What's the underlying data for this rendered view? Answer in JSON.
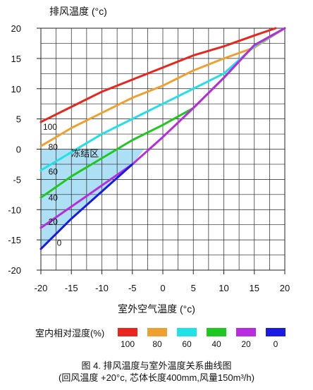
{
  "chart_data": {
    "type": "line",
    "ylabel": "排风温度 (°c)",
    "xlabel": "室外空气温度 (°c)",
    "xlim": [
      -20,
      20
    ],
    "ylim": [
      -20,
      20
    ],
    "x_ticks": [
      -20,
      -15,
      -10,
      -5,
      0,
      5,
      10,
      15,
      20
    ],
    "y_ticks": [
      -20,
      -15,
      -10,
      -5,
      0,
      5,
      10,
      15,
      20
    ],
    "grid": true,
    "series": [
      {
        "name": "100",
        "color": "#e8261d",
        "x": [
          -20,
          -15,
          -10,
          -5,
          0,
          5,
          10,
          15,
          18.5
        ],
        "y": [
          4.5,
          7,
          9.5,
          11.5,
          13.5,
          15.5,
          17,
          18.8,
          20
        ]
      },
      {
        "name": "80",
        "color": "#f0a030",
        "x": [
          -20,
          -15,
          -10,
          -5,
          0,
          5,
          10,
          15,
          20
        ],
        "y": [
          0.5,
          3.5,
          6,
          8.5,
          10.5,
          13,
          15,
          16.8,
          20
        ]
      },
      {
        "name": "60",
        "color": "#22e0e8",
        "x": [
          -20,
          -15,
          -10,
          -5,
          0,
          5,
          10,
          15,
          20
        ],
        "y": [
          -3.5,
          -0.5,
          2.5,
          5,
          7.5,
          10,
          12.5,
          17,
          20
        ]
      },
      {
        "name": "40",
        "color": "#1ec81e",
        "x": [
          -20,
          -15,
          -10,
          -5,
          0,
          5,
          10,
          15,
          20
        ],
        "y": [
          -8,
          -4.5,
          -1.5,
          1.5,
          4,
          6.8,
          11.8,
          17.2,
          20
        ]
      },
      {
        "name": "20",
        "color": "#b82be0",
        "x": [
          -20,
          -15,
          -10,
          -5,
          0,
          5,
          10,
          15,
          20
        ],
        "y": [
          -13,
          -9.5,
          -6,
          -2.5,
          2,
          6.8,
          11.8,
          17.2,
          20
        ]
      },
      {
        "name": "0",
        "color": "#1a1ae0",
        "x": [
          -20,
          -15,
          -10,
          -5
        ],
        "y": [
          -16.5,
          -11.5,
          -7,
          -2.5
        ]
      }
    ],
    "curve_labels": [
      {
        "text": "100",
        "x": -18.5,
        "y": 3.2
      },
      {
        "text": "80",
        "x": -18,
        "y": -0.1
      },
      {
        "text": "60",
        "x": -18,
        "y": -4.2
      },
      {
        "text": "40",
        "x": -18,
        "y": -8.5
      },
      {
        "text": "20",
        "x": -18,
        "y": -12.5
      },
      {
        "text": "0",
        "x": -17,
        "y": -16
      }
    ],
    "region": {
      "label": "冻结区",
      "label_x": -15,
      "label_y": -1.2,
      "fill": "#aee0f5",
      "polygon": [
        [
          -20,
          0
        ],
        [
          -20,
          -16.5
        ],
        [
          -15,
          -11.5
        ],
        [
          -10,
          -7
        ],
        [
          -5,
          -2.5
        ],
        [
          -3,
          0
        ]
      ]
    }
  },
  "legend": {
    "title": "室内相对湿度(%)",
    "items": [
      {
        "label": "100",
        "color": "#e8261d"
      },
      {
        "label": "80",
        "color": "#f0a030"
      },
      {
        "label": "60",
        "color": "#22e0e8"
      },
      {
        "label": "40",
        "color": "#1ec81e"
      },
      {
        "label": "20",
        "color": "#b82be0"
      },
      {
        "label": "0",
        "color": "#1a1ae0"
      }
    ]
  },
  "caption": {
    "line1": "图 4. 排风温度与室外温度关系曲线图",
    "line2": "(回风温度 +20°c, 芯体长度400mm,风量150m³/h)"
  }
}
